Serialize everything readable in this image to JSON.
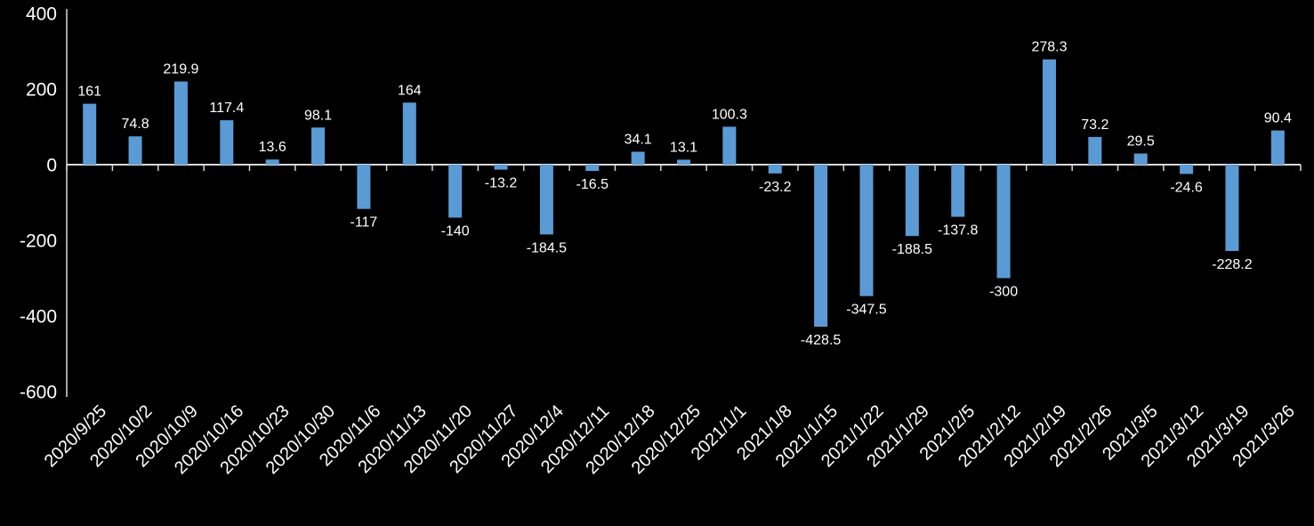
{
  "chart_data": {
    "type": "bar",
    "title": "",
    "xlabel": "",
    "ylabel": "",
    "categories": [
      "2020/9/25",
      "2020/10/2",
      "2020/10/9",
      "2020/10/16",
      "2020/10/23",
      "2020/10/30",
      "2020/11/6",
      "2020/11/13",
      "2020/11/20",
      "2020/11/27",
      "2020/12/4",
      "2020/12/11",
      "2020/12/18",
      "2020/12/25",
      "2021/1/1",
      "2021/1/8",
      "2021/1/15",
      "2021/1/22",
      "2021/1/29",
      "2021/2/5",
      "2021/2/12",
      "2021/2/19",
      "2021/2/26",
      "2021/3/5",
      "2021/3/12",
      "2021/3/19",
      "2021/3/26"
    ],
    "values": [
      161,
      74.8,
      219.9,
      117.4,
      13.6,
      98.1,
      -117,
      164,
      -140,
      -13.2,
      -184.5,
      -16.5,
      34.1,
      13.1,
      100.3,
      -23.2,
      -428.5,
      -347.5,
      -188.5,
      -137.8,
      -300,
      278.3,
      73.2,
      29.5,
      -24.6,
      -228.2,
      90.4
    ],
    "y_ticks": [
      400,
      200,
      0,
      -200,
      -400,
      -600
    ],
    "ylim": [
      -600,
      400
    ],
    "grid": false,
    "legend": false,
    "data_labels": true,
    "x_label_rotation_deg": 45,
    "colors": {
      "bar": "#5B9BD5",
      "background": "#000000",
      "axis": "#D9D9D9",
      "text": "#FFFFFF"
    }
  }
}
